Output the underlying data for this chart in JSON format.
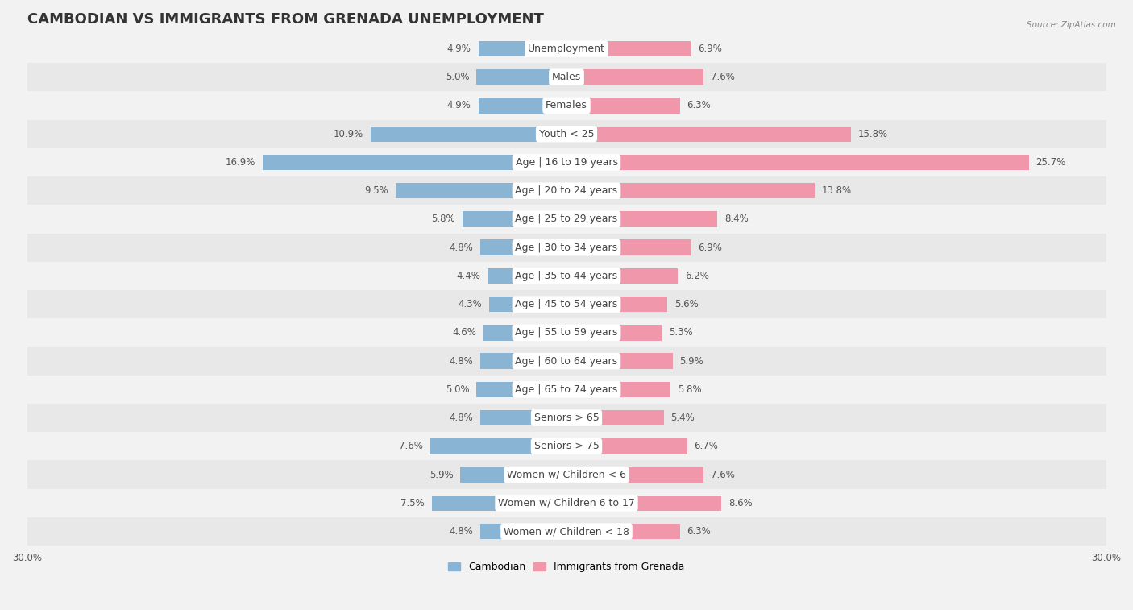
{
  "title": "CAMBODIAN VS IMMIGRANTS FROM GRENADA UNEMPLOYMENT",
  "source": "Source: ZipAtlas.com",
  "categories": [
    "Unemployment",
    "Males",
    "Females",
    "Youth < 25",
    "Age | 16 to 19 years",
    "Age | 20 to 24 years",
    "Age | 25 to 29 years",
    "Age | 30 to 34 years",
    "Age | 35 to 44 years",
    "Age | 45 to 54 years",
    "Age | 55 to 59 years",
    "Age | 60 to 64 years",
    "Age | 65 to 74 years",
    "Seniors > 65",
    "Seniors > 75",
    "Women w/ Children < 6",
    "Women w/ Children 6 to 17",
    "Women w/ Children < 18"
  ],
  "cambodian_values": [
    4.9,
    5.0,
    4.9,
    10.9,
    16.9,
    9.5,
    5.8,
    4.8,
    4.4,
    4.3,
    4.6,
    4.8,
    5.0,
    4.8,
    7.6,
    5.9,
    7.5,
    4.8
  ],
  "grenada_values": [
    6.9,
    7.6,
    6.3,
    15.8,
    25.7,
    13.8,
    8.4,
    6.9,
    6.2,
    5.6,
    5.3,
    5.9,
    5.8,
    5.4,
    6.7,
    7.6,
    8.6,
    6.3
  ],
  "cambodian_color": "#8ab4d4",
  "grenada_color": "#f097ab",
  "background_color": "#f2f2f2",
  "row_color_odd": "#e8e8e8",
  "row_color_even": "#f2f2f2",
  "axis_max": 30.0,
  "title_fontsize": 13,
  "label_fontsize": 9,
  "value_fontsize": 8.5,
  "legend_labels": [
    "Cambodian",
    "Immigrants from Grenada"
  ]
}
